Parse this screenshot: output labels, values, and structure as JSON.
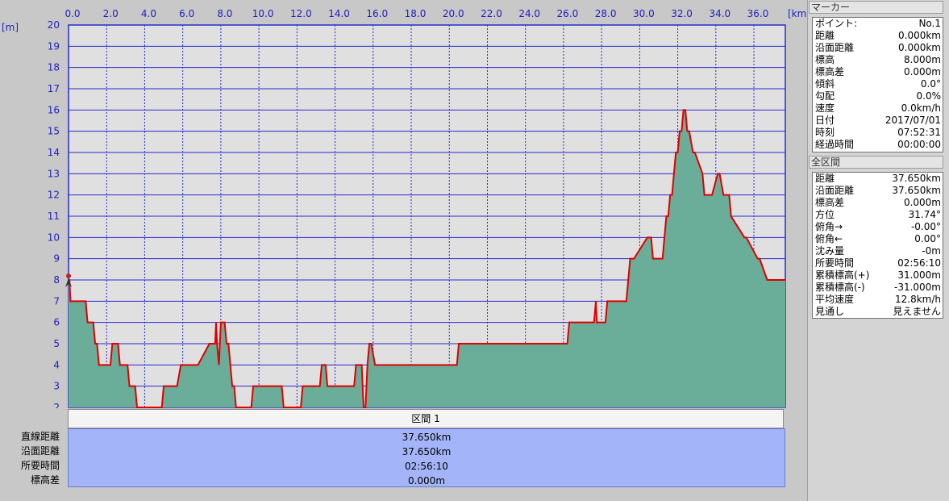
{
  "chart_data": {
    "type": "area",
    "xlabel_unit": "[km]",
    "ylabel_unit": "[m]",
    "xlim": [
      0,
      37.65
    ],
    "ylim": [
      2,
      20
    ],
    "x_ticks": [
      "0.0",
      "2.0",
      "4.0",
      "6.0",
      "8.0",
      "10.0",
      "12.0",
      "14.0",
      "16.0",
      "18.0",
      "20.0",
      "22.0",
      "24.0",
      "26.0",
      "28.0",
      "30.0",
      "32.0",
      "34.0",
      "36.0"
    ],
    "y_ticks": [
      "2",
      "3",
      "4",
      "5",
      "6",
      "7",
      "8",
      "9",
      "10",
      "11",
      "12",
      "13",
      "14",
      "15",
      "16",
      "17",
      "18",
      "19",
      "20"
    ],
    "grid": true,
    "series": [
      {
        "x": [
          0,
          0.05,
          0.1,
          0.15,
          0.2,
          0.3,
          0.5,
          0.9,
          1.0,
          1.3,
          1.4,
          1.5,
          1.6,
          1.8,
          2.2,
          2.3,
          2.6,
          2.7,
          3.1,
          3.2,
          3.5,
          3.6,
          3.7,
          3.8,
          4.9,
          5.0,
          5.6,
          5.7,
          5.9,
          6.0,
          6.7,
          6.8,
          7.4,
          7.5,
          7.6,
          7.7,
          7.75,
          7.8,
          7.9,
          8.0,
          8.1,
          8.2,
          8.3,
          8.4,
          8.5,
          8.6,
          8.7,
          8.8,
          8.9,
          9.0,
          9.6,
          9.7,
          11.2,
          11.3,
          12.2,
          12.3,
          12.4,
          12.5,
          13.2,
          13.3,
          13.5,
          13.6,
          13.9,
          14.0,
          15.0,
          15.1,
          15.4,
          15.5,
          15.6,
          15.7,
          15.8,
          15.9,
          16.1,
          16.2,
          16.3,
          20.4,
          20.5,
          26.2,
          26.3,
          27.5,
          27.6,
          27.7,
          27.75,
          27.8,
          28.2,
          28.3,
          29.2,
          29.3,
          29.4,
          29.5,
          29.6,
          29.7,
          30.4,
          30.5,
          30.6,
          30.7,
          31.2,
          31.3,
          31.4,
          31.5,
          31.6,
          31.7,
          31.8,
          31.9,
          32.0,
          32.1,
          32.2,
          32.3,
          32.4,
          32.5,
          32.6,
          32.8,
          32.9,
          33.3,
          33.4,
          33.7,
          33.8,
          34.1,
          34.2,
          34.4,
          34.5,
          34.7,
          34.8,
          35.5,
          35.6,
          36.2,
          36.3,
          36.7,
          36.8,
          37.65
        ],
        "y": [
          8,
          8,
          7,
          7,
          7,
          7,
          7,
          7,
          6,
          6,
          5,
          5,
          4,
          4,
          4,
          5,
          5,
          4,
          4,
          3,
          3,
          2,
          2,
          2,
          2,
          3,
          3,
          3,
          4,
          4,
          4,
          4,
          5,
          5,
          5,
          5,
          6,
          5,
          4,
          6,
          6,
          6,
          5,
          5,
          4,
          3,
          3,
          2,
          2,
          2,
          2,
          3,
          3,
          2,
          2,
          3,
          3,
          3,
          3,
          4,
          4,
          3,
          3,
          3,
          3,
          4,
          4,
          2,
          2,
          4,
          5,
          5,
          4,
          4,
          4,
          4,
          5,
          5,
          6,
          6,
          6,
          7,
          6,
          6,
          6,
          7,
          7,
          7,
          8,
          9,
          9,
          9,
          10,
          10,
          10,
          9,
          9,
          10,
          11,
          11,
          12,
          12,
          13,
          14,
          14,
          15,
          15,
          16,
          16,
          15,
          15,
          14,
          14,
          13,
          12,
          12,
          12,
          13,
          13,
          12,
          12,
          12,
          11,
          10,
          10,
          9,
          9,
          8,
          8,
          8
        ],
        "fill": "#6aad98",
        "stroke": "#e00000"
      }
    ]
  },
  "section": {
    "header": "区間 1",
    "rows": [
      {
        "label": "直線距離",
        "value": "37.650km"
      },
      {
        "label": "沿面距離",
        "value": "37.650km"
      },
      {
        "label": "所要時間",
        "value": "02:56:10"
      },
      {
        "label": "標高差",
        "value": "0.000m"
      }
    ]
  },
  "marker_panel": {
    "title": "マーカー",
    "rows": [
      {
        "label": "ポイント:",
        "value": "No.1"
      },
      {
        "label": "距離",
        "value": "0.000km"
      },
      {
        "label": "沿面距離",
        "value": "0.000km"
      },
      {
        "label": "標高",
        "value": "8.000m"
      },
      {
        "label": "標高差",
        "value": "0.000m"
      },
      {
        "label": "傾斜",
        "value": "0.0°"
      },
      {
        "label": "勾配",
        "value": "0.0%"
      },
      {
        "label": "速度",
        "value": "0.0km/h"
      },
      {
        "label": "日付",
        "value": "2017/07/01"
      },
      {
        "label": "時刻",
        "value": "07:52:31"
      },
      {
        "label": "経過時間",
        "value": "00:00:00"
      }
    ]
  },
  "total_panel": {
    "title": "全区間",
    "rows": [
      {
        "label": "距離",
        "value": "37.650km"
      },
      {
        "label": "沿面距離",
        "value": "37.650km"
      },
      {
        "label": "標高差",
        "value": "0.000m"
      },
      {
        "label": "方位",
        "value": "31.74°"
      },
      {
        "label": "俯角→",
        "value": "-0.00°"
      },
      {
        "label": "俯角←",
        "value": "0.00°"
      },
      {
        "label": "沈み量",
        "value": "-0m"
      },
      {
        "label": "所要時間",
        "value": "02:56:10"
      },
      {
        "label": "累積標高(+)",
        "value": "31.000m"
      },
      {
        "label": "累積標高(-)",
        "value": "-31.000m"
      },
      {
        "label": "平均速度",
        "value": "12.8km/h"
      },
      {
        "label": "見通し",
        "value": "見えません"
      }
    ]
  }
}
